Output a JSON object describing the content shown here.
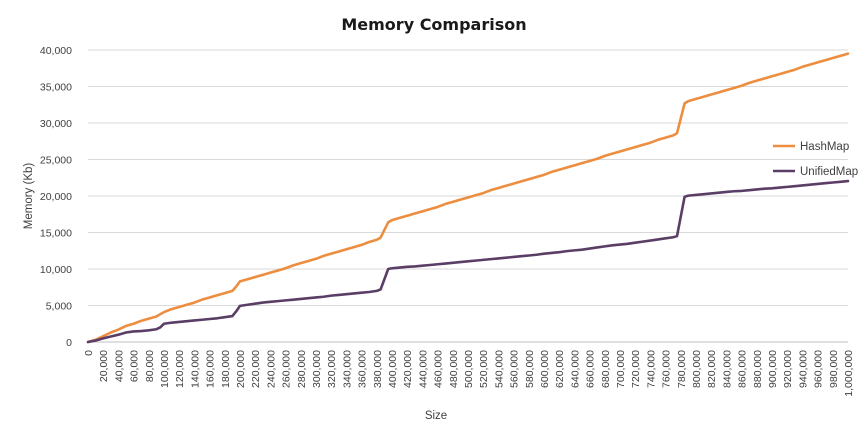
{
  "chart_data": {
    "type": "line",
    "title": "Memory Comparison",
    "xlabel": "Size",
    "ylabel": "Memory (Kb)",
    "xlim": [
      0,
      1000000
    ],
    "ylim": [
      0,
      40000
    ],
    "grid": true,
    "legend_position": "right",
    "x_tick_labels": [
      "0",
      "20,000",
      "40,000",
      "60,000",
      "80,000",
      "100,000",
      "120,000",
      "140,000",
      "160,000",
      "180,000",
      "200,000",
      "220,000",
      "240,000",
      "260,000",
      "280,000",
      "300,000",
      "320,000",
      "340,000",
      "360,000",
      "380,000",
      "400,000",
      "420,000",
      "440,000",
      "460,000",
      "480,000",
      "500,000",
      "520,000",
      "540,000",
      "560,000",
      "580,000",
      "600,000",
      "620,000",
      "640,000",
      "660,000",
      "680,000",
      "700,000",
      "720,000",
      "740,000",
      "760,000",
      "780,000",
      "800,000",
      "820,000",
      "840,000",
      "860,000",
      "880,000",
      "900,000",
      "920,000",
      "940,000",
      "960,000",
      "980,000",
      "1,000,000"
    ],
    "y_tick_labels": [
      "0",
      "5,000",
      "10,000",
      "15,000",
      "20,000",
      "25,000",
      "30,000",
      "35,000",
      "40,000"
    ],
    "series": [
      {
        "name": "HashMap",
        "color": "#ED8D3F",
        "points": [
          [
            0,
            0
          ],
          [
            10000,
            300
          ],
          [
            20000,
            800
          ],
          [
            30000,
            1300
          ],
          [
            40000,
            1700
          ],
          [
            50000,
            2200
          ],
          [
            60000,
            2500
          ],
          [
            70000,
            2900
          ],
          [
            80000,
            3200
          ],
          [
            90000,
            3500
          ],
          [
            95000,
            3800
          ],
          [
            100000,
            4100
          ],
          [
            110000,
            4500
          ],
          [
            120000,
            4800
          ],
          [
            130000,
            5100
          ],
          [
            140000,
            5400
          ],
          [
            150000,
            5800
          ],
          [
            160000,
            6100
          ],
          [
            170000,
            6400
          ],
          [
            180000,
            6700
          ],
          [
            190000,
            7000
          ],
          [
            195000,
            7600
          ],
          [
            200000,
            8300
          ],
          [
            210000,
            8600
          ],
          [
            220000,
            8900
          ],
          [
            230000,
            9200
          ],
          [
            240000,
            9500
          ],
          [
            250000,
            9800
          ],
          [
            260000,
            10100
          ],
          [
            270000,
            10500
          ],
          [
            280000,
            10800
          ],
          [
            290000,
            11100
          ],
          [
            300000,
            11400
          ],
          [
            310000,
            11800
          ],
          [
            320000,
            12100
          ],
          [
            330000,
            12400
          ],
          [
            340000,
            12700
          ],
          [
            350000,
            13000
          ],
          [
            360000,
            13300
          ],
          [
            370000,
            13700
          ],
          [
            380000,
            14000
          ],
          [
            385000,
            14300
          ],
          [
            395000,
            16400
          ],
          [
            400000,
            16700
          ],
          [
            410000,
            17000
          ],
          [
            420000,
            17300
          ],
          [
            430000,
            17600
          ],
          [
            440000,
            17900
          ],
          [
            450000,
            18200
          ],
          [
            460000,
            18500
          ],
          [
            470000,
            18900
          ],
          [
            480000,
            19200
          ],
          [
            490000,
            19500
          ],
          [
            500000,
            19800
          ],
          [
            510000,
            20100
          ],
          [
            520000,
            20400
          ],
          [
            530000,
            20800
          ],
          [
            540000,
            21100
          ],
          [
            550000,
            21400
          ],
          [
            560000,
            21700
          ],
          [
            570000,
            22000
          ],
          [
            580000,
            22300
          ],
          [
            590000,
            22600
          ],
          [
            600000,
            22900
          ],
          [
            610000,
            23300
          ],
          [
            620000,
            23600
          ],
          [
            630000,
            23900
          ],
          [
            640000,
            24200
          ],
          [
            650000,
            24500
          ],
          [
            660000,
            24800
          ],
          [
            670000,
            25100
          ],
          [
            680000,
            25500
          ],
          [
            690000,
            25800
          ],
          [
            700000,
            26100
          ],
          [
            710000,
            26400
          ],
          [
            720000,
            26700
          ],
          [
            730000,
            27000
          ],
          [
            740000,
            27300
          ],
          [
            750000,
            27700
          ],
          [
            760000,
            28000
          ],
          [
            770000,
            28300
          ],
          [
            775000,
            28600
          ],
          [
            785000,
            32700
          ],
          [
            790000,
            33000
          ],
          [
            800000,
            33300
          ],
          [
            810000,
            33600
          ],
          [
            820000,
            33900
          ],
          [
            830000,
            34200
          ],
          [
            840000,
            34500
          ],
          [
            850000,
            34800
          ],
          [
            860000,
            35100
          ],
          [
            870000,
            35500
          ],
          [
            880000,
            35800
          ],
          [
            890000,
            36100
          ],
          [
            900000,
            36400
          ],
          [
            910000,
            36700
          ],
          [
            920000,
            37000
          ],
          [
            930000,
            37300
          ],
          [
            940000,
            37700
          ],
          [
            950000,
            38000
          ],
          [
            960000,
            38300
          ],
          [
            970000,
            38600
          ],
          [
            980000,
            38900
          ],
          [
            990000,
            39200
          ],
          [
            1000000,
            39500
          ]
        ]
      },
      {
        "name": "UnifiedMap",
        "color": "#5B3E66",
        "points": [
          [
            0,
            0
          ],
          [
            10000,
            200
          ],
          [
            20000,
            500
          ],
          [
            30000,
            750
          ],
          [
            40000,
            1000
          ],
          [
            50000,
            1300
          ],
          [
            60000,
            1450
          ],
          [
            70000,
            1500
          ],
          [
            80000,
            1600
          ],
          [
            90000,
            1750
          ],
          [
            95000,
            2000
          ],
          [
            100000,
            2500
          ],
          [
            110000,
            2650
          ],
          [
            120000,
            2750
          ],
          [
            130000,
            2850
          ],
          [
            140000,
            2950
          ],
          [
            150000,
            3050
          ],
          [
            160000,
            3150
          ],
          [
            170000,
            3250
          ],
          [
            180000,
            3400
          ],
          [
            190000,
            3550
          ],
          [
            195000,
            4200
          ],
          [
            200000,
            4950
          ],
          [
            210000,
            5100
          ],
          [
            220000,
            5250
          ],
          [
            230000,
            5400
          ],
          [
            240000,
            5500
          ],
          [
            250000,
            5600
          ],
          [
            260000,
            5700
          ],
          [
            270000,
            5800
          ],
          [
            280000,
            5900
          ],
          [
            290000,
            6000
          ],
          [
            300000,
            6100
          ],
          [
            310000,
            6200
          ],
          [
            320000,
            6350
          ],
          [
            330000,
            6450
          ],
          [
            340000,
            6550
          ],
          [
            350000,
            6650
          ],
          [
            360000,
            6750
          ],
          [
            370000,
            6850
          ],
          [
            380000,
            7000
          ],
          [
            385000,
            7200
          ],
          [
            395000,
            10000
          ],
          [
            400000,
            10100
          ],
          [
            410000,
            10200
          ],
          [
            420000,
            10300
          ],
          [
            430000,
            10350
          ],
          [
            440000,
            10450
          ],
          [
            450000,
            10550
          ],
          [
            460000,
            10650
          ],
          [
            470000,
            10750
          ],
          [
            480000,
            10850
          ],
          [
            490000,
            10950
          ],
          [
            500000,
            11050
          ],
          [
            510000,
            11150
          ],
          [
            520000,
            11250
          ],
          [
            530000,
            11350
          ],
          [
            540000,
            11450
          ],
          [
            550000,
            11550
          ],
          [
            560000,
            11650
          ],
          [
            570000,
            11750
          ],
          [
            580000,
            11850
          ],
          [
            590000,
            11950
          ],
          [
            600000,
            12100
          ],
          [
            610000,
            12200
          ],
          [
            620000,
            12300
          ],
          [
            630000,
            12450
          ],
          [
            640000,
            12550
          ],
          [
            650000,
            12650
          ],
          [
            660000,
            12800
          ],
          [
            670000,
            12950
          ],
          [
            680000,
            13100
          ],
          [
            690000,
            13250
          ],
          [
            700000,
            13350
          ],
          [
            710000,
            13450
          ],
          [
            720000,
            13600
          ],
          [
            730000,
            13750
          ],
          [
            740000,
            13900
          ],
          [
            750000,
            14050
          ],
          [
            760000,
            14200
          ],
          [
            770000,
            14350
          ],
          [
            775000,
            14500
          ],
          [
            785000,
            19900
          ],
          [
            790000,
            20050
          ],
          [
            800000,
            20150
          ],
          [
            810000,
            20250
          ],
          [
            820000,
            20350
          ],
          [
            830000,
            20450
          ],
          [
            840000,
            20550
          ],
          [
            850000,
            20650
          ],
          [
            860000,
            20700
          ],
          [
            870000,
            20800
          ],
          [
            880000,
            20900
          ],
          [
            890000,
            21000
          ],
          [
            900000,
            21050
          ],
          [
            910000,
            21150
          ],
          [
            920000,
            21250
          ],
          [
            930000,
            21350
          ],
          [
            940000,
            21450
          ],
          [
            950000,
            21550
          ],
          [
            960000,
            21650
          ],
          [
            970000,
            21750
          ],
          [
            980000,
            21850
          ],
          [
            990000,
            21950
          ],
          [
            1000000,
            22050
          ]
        ]
      }
    ]
  }
}
